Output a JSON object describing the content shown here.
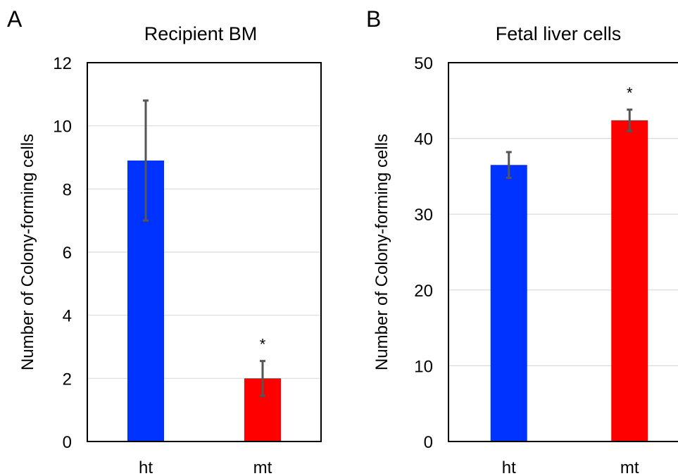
{
  "chart_data": [
    {
      "panel": "A",
      "type": "bar",
      "title": "Recipient BM",
      "xlabel": "",
      "ylabel": "Number of Colony-forming cells",
      "categories": [
        "ht",
        "mt"
      ],
      "values": [
        8.9,
        2.0
      ],
      "error": [
        1.9,
        0.55
      ],
      "significance": [
        "",
        "*"
      ],
      "colors": [
        "#0033ff",
        "#ff0000"
      ],
      "ylim": [
        0,
        12
      ],
      "yticks": [
        0,
        2,
        4,
        6,
        8,
        10,
        12
      ],
      "grid": true,
      "legend": "none"
    },
    {
      "panel": "B",
      "type": "bar",
      "title": "Fetal liver cells",
      "xlabel": "",
      "ylabel": "Number of Colony-forming cells",
      "categories": [
        "ht",
        "mt"
      ],
      "values": [
        36.5,
        42.4
      ],
      "error": [
        1.7,
        1.4
      ],
      "significance": [
        "",
        "*"
      ],
      "colors": [
        "#0033ff",
        "#ff0000"
      ],
      "ylim": [
        0,
        50
      ],
      "yticks": [
        0,
        10,
        20,
        30,
        40,
        50
      ],
      "grid": true,
      "legend": "none"
    }
  ]
}
